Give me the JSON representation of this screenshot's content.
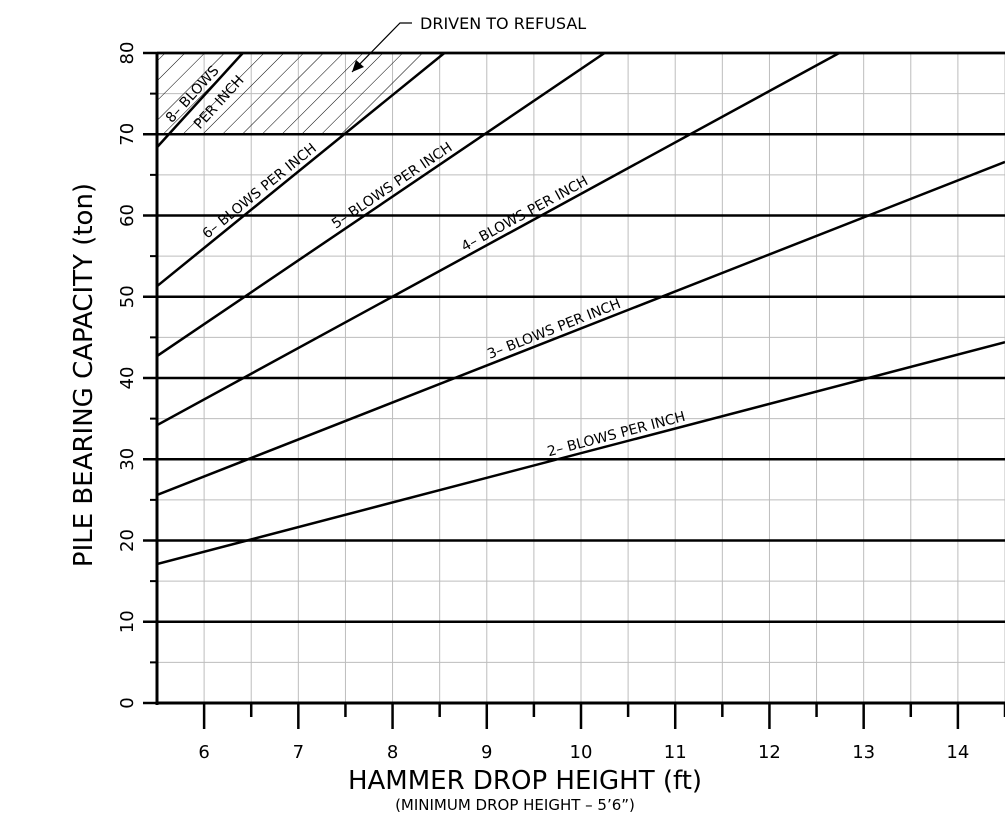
{
  "chart_data": {
    "type": "line",
    "title": "",
    "xlabel": "HAMMER DROP HEIGHT (ft)",
    "xlabel_note": "(MINIMUM DROP HEIGHT – 5’6”)",
    "ylabel": "PILE BEARING CAPACITY (ton)",
    "xlim": [
      5.5,
      14.5
    ],
    "ylim": [
      0,
      80
    ],
    "x_ticks": [
      "6",
      "7",
      "8",
      "9",
      "10",
      "11",
      "12",
      "13",
      "14"
    ],
    "y_ticks": [
      "0",
      "10",
      "20",
      "30",
      "40",
      "50",
      "60",
      "70",
      "80"
    ],
    "grid": true,
    "series": [
      {
        "name": "2– BLOWS PER INCH",
        "x": [
          5.5,
          14.5
        ],
        "y": [
          17.1,
          44.4
        ]
      },
      {
        "name": "3– BLOWS PER INCH",
        "x": [
          5.5,
          14.5
        ],
        "y": [
          25.6,
          66.6
        ]
      },
      {
        "name": "4– BLOWS PER INCH",
        "x": [
          5.5,
          12.74
        ],
        "y": [
          34.2,
          80
        ]
      },
      {
        "name": "5– BLOWS PER INCH",
        "x": [
          5.5,
          10.25
        ],
        "y": [
          42.7,
          80
        ]
      },
      {
        "name": "6– BLOWS PER INCH",
        "x": [
          5.5,
          8.55
        ],
        "y": [
          51.3,
          80
        ]
      },
      {
        "name": "8– BLOWS PER INCH",
        "x": [
          5.5,
          6.41
        ],
        "y": [
          68.4,
          80
        ]
      }
    ],
    "series_labels": [
      {
        "line1": "2– BLOWS PER INCH"
      },
      {
        "line1": "3– BLOWS PER INCH"
      },
      {
        "line1": "4– BLOWS PER INCH"
      },
      {
        "line1": "5– BLOWS PER INCH"
      },
      {
        "line1": "6– BLOWS PER INCH"
      },
      {
        "line1": "8– BLOWS",
        "line2": "PER INCH"
      }
    ],
    "annotations": [
      {
        "text": "DRIVEN TO REFUSAL",
        "note": "hatched region above 70 ton bounded by 6-blows line"
      }
    ],
    "refusal_threshold": 70
  }
}
